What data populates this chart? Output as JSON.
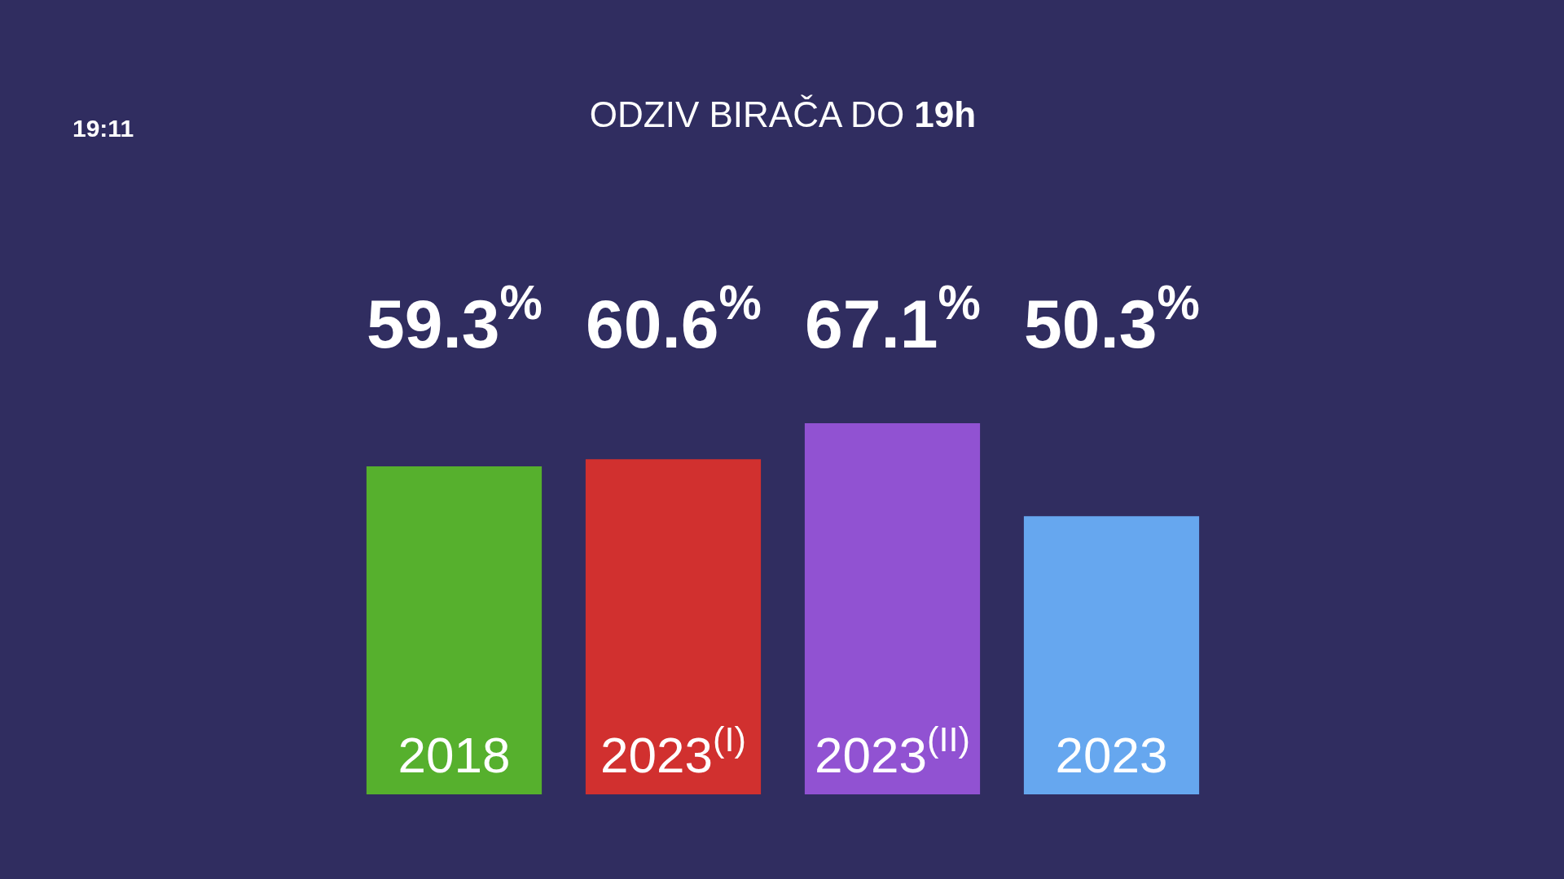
{
  "chart_data": {
    "type": "bar",
    "title": "ODZIV BIRAČA DO 19h",
    "annotations": [
      "19:11"
    ],
    "categories": [
      "2018",
      "2023$^{(I)}$",
      "2023$^{(II)}$",
      "2023"
    ],
    "values": [
      59.3,
      60.6,
      67.1,
      50.3
    ],
    "value_labels": [
      "59.3$^{%}$",
      "60.6$^{%}$",
      "67.1$^{%}$",
      "50.3$^{%}$"
    ],
    "colors": [
      "#56b02d",
      "#d1302f",
      "#9152d2",
      "#66a7ef"
    ],
    "tick_labels": "x"
  }
}
